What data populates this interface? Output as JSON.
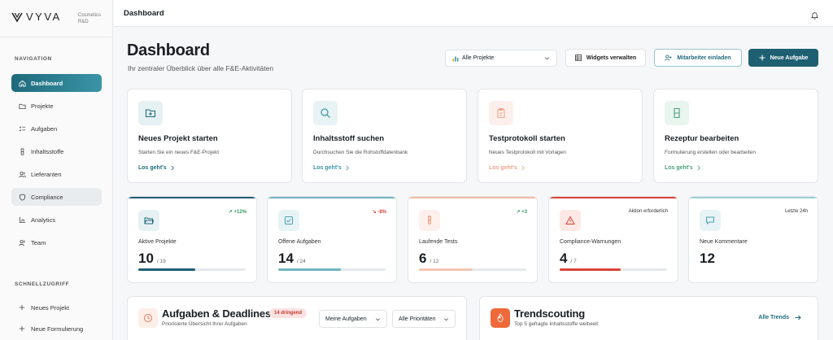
{
  "brand": {
    "name": "VYVA",
    "subtitle_line1": "Cosmetics",
    "subtitle_line2": "R&D"
  },
  "sidebar": {
    "nav_label": "NAVIGATION",
    "items": [
      {
        "label": "Dashboard",
        "icon": "home-icon"
      },
      {
        "label": "Projekte",
        "icon": "folder-icon"
      },
      {
        "label": "Aufgaben",
        "icon": "list-checks-icon"
      },
      {
        "label": "Inhaltsstoffe",
        "icon": "flask-icon"
      },
      {
        "label": "Lieferanten",
        "icon": "users-icon"
      },
      {
        "label": "Compliance",
        "icon": "shield-icon"
      },
      {
        "label": "Analytics",
        "icon": "bar-chart-icon"
      },
      {
        "label": "Team",
        "icon": "team-icon"
      }
    ],
    "quick_label": "SCHNELLZUGRIFF",
    "quick_items": [
      {
        "label": "Neues Projekt"
      },
      {
        "label": "Neue Formulierung"
      }
    ]
  },
  "topbar": {
    "title": "Dashboard"
  },
  "header": {
    "title": "Dashboard",
    "subtitle": "Ihr zentraler Überblick über alle F&E-Aktivitäten"
  },
  "toolbar": {
    "project_select": "Alle Projekte",
    "widgets_label": "Widgets verwalten",
    "invite_label": "Mitarbeiter einladen",
    "new_task_label": "Neue Aufgabe"
  },
  "quick_actions": [
    {
      "title": "Neues Projekt starten",
      "desc": "Starten Sie ein neues F&E-Projekt",
      "link": "Los geht's",
      "color": "#1e6a7c",
      "bg": "#e6f1f3",
      "icon": "folder-plus-icon"
    },
    {
      "title": "Inhaltsstoff suchen",
      "desc": "Durchsuchen Sie die Rohstoffdatenbank",
      "link": "Los geht's",
      "color": "#3a94a6",
      "bg": "#e7f3f5",
      "icon": "search-icon"
    },
    {
      "title": "Testprotokoll starten",
      "desc": "Neues Testprotokoll mit Vorlagen",
      "link": "Los geht's",
      "color": "#f0a38c",
      "bg": "#fdf0ec",
      "icon": "clipboard-icon"
    },
    {
      "title": "Rezeptur bearbeiten",
      "desc": "Formulierung erstellen oder bearbeiten",
      "link": "Los geht's",
      "color": "#4aa07c",
      "bg": "#e9f5ef",
      "icon": "beaker-icon"
    }
  ],
  "kpis": [
    {
      "label": "Aktive Projekte",
      "value": "10",
      "of": "/ 19",
      "trend": "+12%",
      "trend_color": "#2e9a5a",
      "bar": "#1e5f72",
      "fill": "#1e5f72",
      "pct": 0.53,
      "icon": "folder-open-icon",
      "icon_bg": "#e6f1f3",
      "icon_color": "#1e6a7c"
    },
    {
      "label": "Offene Aufgaben",
      "value": "14",
      "of": "/ 24",
      "trend": "-8%",
      "trend_color": "#d9443a",
      "bar": "#6fb6c0",
      "fill": "#6fb6c0",
      "pct": 0.58,
      "icon": "check-square-icon",
      "icon_bg": "#e7f3f5",
      "icon_color": "#4aa3b3"
    },
    {
      "label": "Laufende Tests",
      "value": "6",
      "of": "/ 12",
      "trend": "+3",
      "trend_color": "#2e9a5a",
      "bar": "#f4b9a6",
      "fill": "#f6c4b2",
      "pct": 0.5,
      "icon": "test-tube-icon",
      "icon_bg": "#fdf0ec",
      "icon_color": "#e58a6c"
    },
    {
      "label": "Compliance-Warnungen",
      "value": "4",
      "of": "/ 7",
      "trend": "Aktion erforderlich",
      "trend_color": "#333",
      "bar": "#d9443a",
      "fill": "#d9443a",
      "pct": 0.57,
      "icon": "alert-triangle-icon",
      "icon_bg": "#fde8e6",
      "icon_color": "#d9443a"
    },
    {
      "label": "Neue Kommentare",
      "value": "12",
      "of": "",
      "trend": "Letzte 24h",
      "trend_color": "#333",
      "bar": "#9ccfd6",
      "fill": "",
      "pct": 0,
      "icon": "message-square-icon",
      "icon_bg": "#e7f3f5",
      "icon_color": "#4aa3b3"
    }
  ],
  "tasks_panel": {
    "title": "Aufgaben & Deadlines",
    "subtitle": "Priorisierte Übersicht Ihrer Aufgaben",
    "badge": "14 dringend",
    "filter1": "Meine Aufgaben",
    "filter2": "Alle Prioritäten"
  },
  "trend_panel": {
    "title": "Trendscouting",
    "subtitle": "Top 5 gefragte Inhaltsstoffe weltweit",
    "link": "Alle Trends"
  }
}
